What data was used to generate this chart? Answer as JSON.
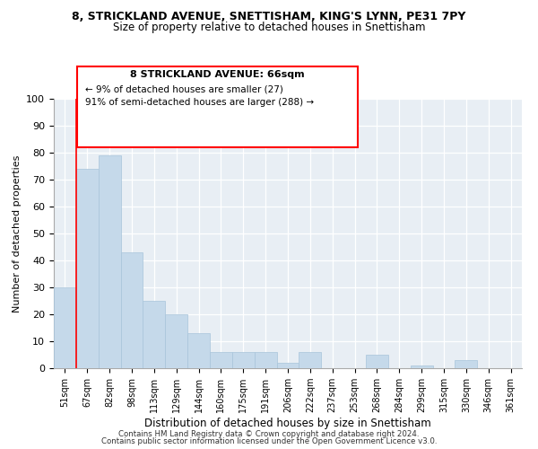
{
  "title": "8, STRICKLAND AVENUE, SNETTISHAM, KING'S LYNN, PE31 7PY",
  "subtitle": "Size of property relative to detached houses in Snettisham",
  "xlabel": "Distribution of detached houses by size in Snettisham",
  "ylabel": "Number of detached properties",
  "bin_labels": [
    "51sqm",
    "67sqm",
    "82sqm",
    "98sqm",
    "113sqm",
    "129sqm",
    "144sqm",
    "160sqm",
    "175sqm",
    "191sqm",
    "206sqm",
    "222sqm",
    "237sqm",
    "253sqm",
    "268sqm",
    "284sqm",
    "299sqm",
    "315sqm",
    "330sqm",
    "346sqm",
    "361sqm"
  ],
  "bar_values": [
    30,
    74,
    79,
    43,
    25,
    20,
    13,
    6,
    6,
    6,
    2,
    6,
    0,
    0,
    5,
    0,
    1,
    0,
    3,
    0,
    0
  ],
  "bar_color": "#c5d9ea",
  "bar_edge_color": "#a8c4da",
  "annotation_title": "8 STRICKLAND AVENUE: 66sqm",
  "annotation_line1": "← 9% of detached houses are smaller (27)",
  "annotation_line2": "91% of semi-detached houses are larger (288) →",
  "ylim": [
    0,
    100
  ],
  "yticks": [
    0,
    10,
    20,
    30,
    40,
    50,
    60,
    70,
    80,
    90,
    100
  ],
  "footer_line1": "Contains HM Land Registry data © Crown copyright and database right 2024.",
  "footer_line2": "Contains public sector information licensed under the Open Government Licence v3.0.",
  "bg_color": "#e8eef4"
}
